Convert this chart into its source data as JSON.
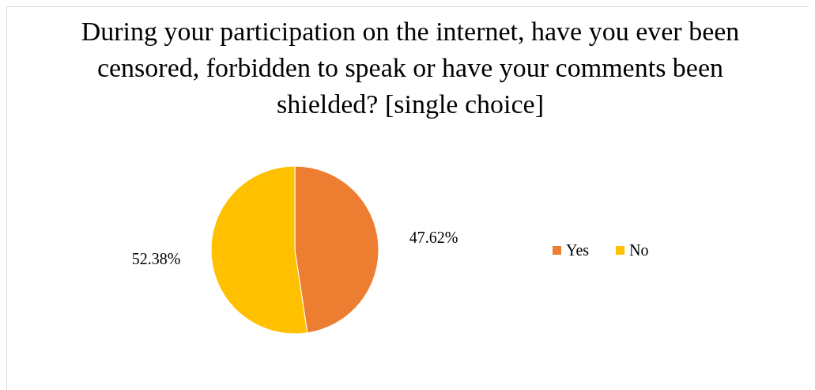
{
  "chart_data": {
    "type": "pie",
    "title": "During your participation on the internet, have you ever been censored, forbidden to speak or have your comments been shielded? [single choice]",
    "categories": [
      "Yes",
      "No"
    ],
    "values": [
      47.62,
      52.38
    ],
    "colors": [
      "#ed7d31",
      "#ffc000"
    ],
    "value_labels": [
      "47.62%",
      "52.38%"
    ],
    "legend": "right"
  }
}
